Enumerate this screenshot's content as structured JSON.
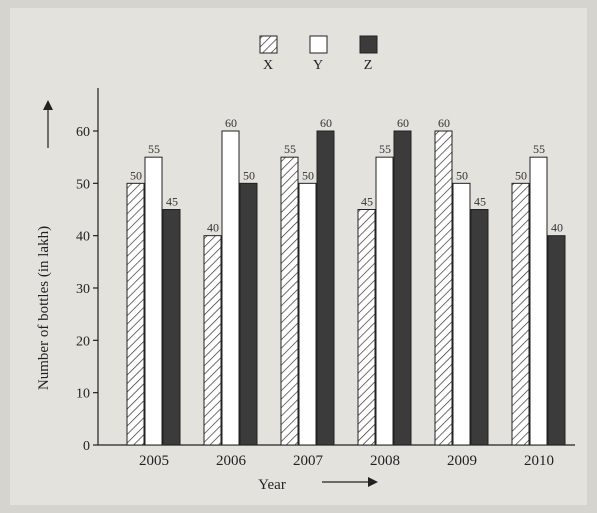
{
  "chart_data": {
    "type": "bar",
    "categories": [
      "2005",
      "2006",
      "2007",
      "2008",
      "2009",
      "2010"
    ],
    "series": [
      {
        "name": "X",
        "pattern": "hatch",
        "values": [
          50,
          40,
          55,
          45,
          60,
          50
        ]
      },
      {
        "name": "Y",
        "pattern": "white",
        "values": [
          55,
          60,
          50,
          55,
          50,
          55
        ]
      },
      {
        "name": "Z",
        "pattern": "dark",
        "values": [
          45,
          50,
          60,
          60,
          45,
          40
        ]
      }
    ],
    "xlabel": "Year",
    "ylabel": "Number of bottles (in lakh)",
    "ylim": [
      0,
      60
    ],
    "yticks": [
      0,
      10,
      20,
      30,
      40,
      50,
      60
    ],
    "legend_position": "top-center",
    "colors": {
      "dark": "#3b3b3b",
      "white": "#ffffff",
      "hatch_line": "#333333",
      "background": "#e4e2dd"
    }
  }
}
